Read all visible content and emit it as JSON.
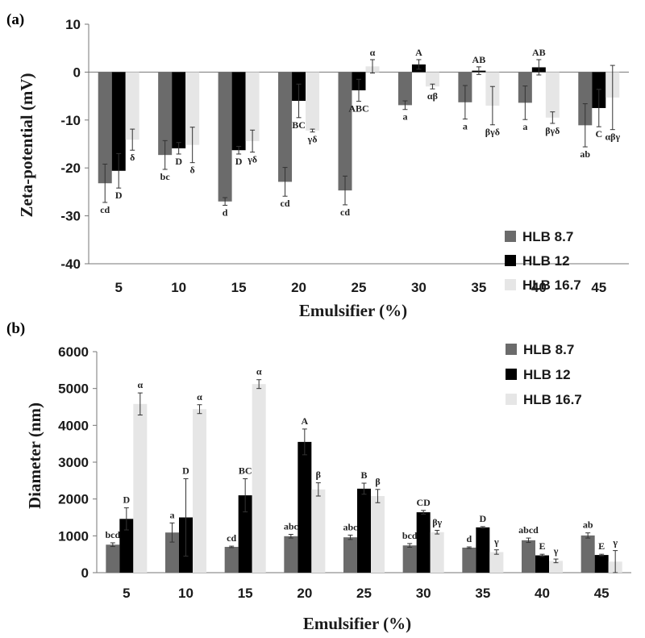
{
  "chart_data": [
    {
      "type": "bar",
      "panel_label": "(a)",
      "xlabel": "Emulsifier (%)",
      "ylabel": "Zeta-potential (mV)",
      "ylim": [
        -40,
        10
      ],
      "yticks": [
        "10",
        "0",
        "-10",
        "-20",
        "-30",
        "-40"
      ],
      "categories": [
        "5",
        "10",
        "15",
        "20",
        "25",
        "30",
        "35",
        "40",
        "45"
      ],
      "legend_position": "bottom-right",
      "grid": false,
      "series": [
        {
          "name": "HLB 8.7",
          "color": "#6b6b6b",
          "values": [
            -23.2,
            -17.3,
            -27.0,
            -22.9,
            -24.7,
            -6.9,
            -6.3,
            -6.4,
            -11.1
          ],
          "errors": [
            4.0,
            3.0,
            0.8,
            3.0,
            3.0,
            0.9,
            3.5,
            3.5,
            4.5
          ],
          "labels": [
            "cd",
            "bc",
            "d",
            "cd",
            "cd",
            "a",
            "a",
            "a",
            "ab"
          ]
        },
        {
          "name": "HLB 12",
          "color": "#000000",
          "values": [
            -20.6,
            -15.9,
            -16.3,
            -6.0,
            -3.8,
            1.6,
            0.3,
            1.0,
            -7.5
          ],
          "errors": [
            3.6,
            1.2,
            0.8,
            3.5,
            2.3,
            1.0,
            0.8,
            1.6,
            3.9
          ],
          "labels": [
            "D",
            "D",
            "D",
            "BC",
            "ABC",
            "A",
            "AB",
            "AB",
            "C"
          ]
        },
        {
          "name": "HLB 16.7",
          "color": "#e6e6e6",
          "values": [
            -14.1,
            -15.2,
            -14.4,
            -12.2,
            1.2,
            -3.0,
            -7.0,
            -9.5,
            -5.3
          ],
          "errors": [
            2.2,
            3.7,
            2.3,
            0.3,
            1.4,
            0.5,
            4.0,
            1.2,
            6.7
          ],
          "labels": [
            "δ",
            "δ",
            "γδ",
            "γδ",
            "α",
            "αβ",
            "βγδ",
            "βγδ",
            "αβγ"
          ]
        }
      ]
    },
    {
      "type": "bar",
      "panel_label": "(b)",
      "xlabel": "Emulsifier (%)",
      "ylabel": "Diameter (nm)",
      "ylim": [
        0,
        6000
      ],
      "yticks": [
        "6000",
        "5000",
        "4000",
        "3000",
        "2000",
        "1000",
        "0"
      ],
      "categories": [
        "5",
        "10",
        "15",
        "20",
        "25",
        "30",
        "35",
        "40",
        "45"
      ],
      "legend_position": "top-right",
      "grid": false,
      "series": [
        {
          "name": "HLB 8.7",
          "color": "#6b6b6b",
          "values": [
            760,
            1090,
            700,
            990,
            960,
            740,
            680,
            880,
            1010
          ],
          "errors": [
            50,
            260,
            20,
            50,
            60,
            50,
            20,
            60,
            70
          ],
          "labels": [
            "bcd",
            "a",
            "cd",
            "abc",
            "abc",
            "bcd",
            "d",
            "abcd",
            "ab"
          ]
        },
        {
          "name": "HLB 12",
          "color": "#000000",
          "values": [
            1460,
            1500,
            2100,
            3550,
            2280,
            1640,
            1230,
            470,
            480
          ],
          "errors": [
            300,
            1050,
            450,
            350,
            150,
            50,
            20,
            30,
            20
          ],
          "labels": [
            "D",
            "D",
            "BC",
            "A",
            "B",
            "CD",
            "D",
            "E",
            "E"
          ]
        },
        {
          "name": "HLB 16.7",
          "color": "#e6e6e6",
          "values": [
            4580,
            4440,
            5120,
            2260,
            2080,
            1100,
            560,
            320,
            300
          ],
          "errors": [
            300,
            120,
            120,
            180,
            180,
            50,
            60,
            50,
            300
          ],
          "labels": [
            "α",
            "α",
            "α",
            "β",
            "β",
            "βγ",
            "γ",
            "γ",
            "γ"
          ]
        }
      ]
    }
  ]
}
